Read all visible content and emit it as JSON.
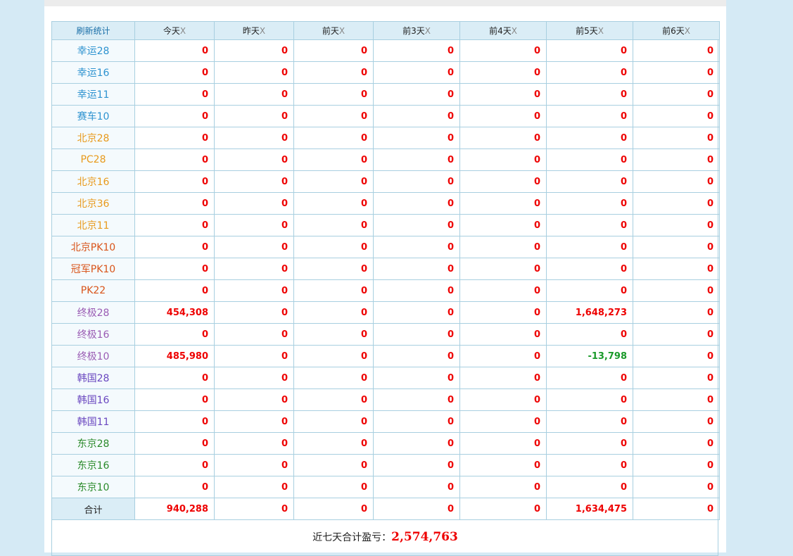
{
  "header": {
    "first": "刷新统计",
    "days": [
      "今天",
      "昨天",
      "前天",
      "前3天",
      "前4天",
      "前5天",
      "前6天"
    ],
    "close": "X"
  },
  "rows": [
    {
      "name": "幸运28",
      "color": "#2e93d0",
      "values": [
        "0",
        "0",
        "0",
        "0",
        "0",
        "0",
        "0"
      ]
    },
    {
      "name": "幸运16",
      "color": "#2e93d0",
      "values": [
        "0",
        "0",
        "0",
        "0",
        "0",
        "0",
        "0"
      ]
    },
    {
      "name": "幸运11",
      "color": "#2e93d0",
      "values": [
        "0",
        "0",
        "0",
        "0",
        "0",
        "0",
        "0"
      ]
    },
    {
      "name": "赛车10",
      "color": "#2e93d0",
      "values": [
        "0",
        "0",
        "0",
        "0",
        "0",
        "0",
        "0"
      ]
    },
    {
      "name": "北京28",
      "color": "#e89a1c",
      "values": [
        "0",
        "0",
        "0",
        "0",
        "0",
        "0",
        "0"
      ]
    },
    {
      "name": "PC28",
      "color": "#e89a1c",
      "values": [
        "0",
        "0",
        "0",
        "0",
        "0",
        "0",
        "0"
      ]
    },
    {
      "name": "北京16",
      "color": "#e89a1c",
      "values": [
        "0",
        "0",
        "0",
        "0",
        "0",
        "0",
        "0"
      ]
    },
    {
      "name": "北京36",
      "color": "#e89a1c",
      "values": [
        "0",
        "0",
        "0",
        "0",
        "0",
        "0",
        "0"
      ]
    },
    {
      "name": "北京11",
      "color": "#e89a1c",
      "values": [
        "0",
        "0",
        "0",
        "0",
        "0",
        "0",
        "0"
      ]
    },
    {
      "name": "北京PK10",
      "color": "#d9541a",
      "values": [
        "0",
        "0",
        "0",
        "0",
        "0",
        "0",
        "0"
      ]
    },
    {
      "name": "冠军PK10",
      "color": "#d9541a",
      "values": [
        "0",
        "0",
        "0",
        "0",
        "0",
        "0",
        "0"
      ]
    },
    {
      "name": "PK22",
      "color": "#d9541a",
      "values": [
        "0",
        "0",
        "0",
        "0",
        "0",
        "0",
        "0"
      ]
    },
    {
      "name": "终极28",
      "color": "#9a5cb4",
      "values": [
        "454,308",
        "0",
        "0",
        "0",
        "0",
        "1,648,273",
        "0"
      ]
    },
    {
      "name": "终极16",
      "color": "#9a5cb4",
      "values": [
        "0",
        "0",
        "0",
        "0",
        "0",
        "0",
        "0"
      ]
    },
    {
      "name": "终极10",
      "color": "#9a5cb4",
      "values": [
        "485,980",
        "0",
        "0",
        "0",
        "0",
        "-13,798",
        "0"
      ]
    },
    {
      "name": "韩国28",
      "color": "#6a48c0",
      "values": [
        "0",
        "0",
        "0",
        "0",
        "0",
        "0",
        "0"
      ]
    },
    {
      "name": "韩国16",
      "color": "#6a48c0",
      "values": [
        "0",
        "0",
        "0",
        "0",
        "0",
        "0",
        "0"
      ]
    },
    {
      "name": "韩国11",
      "color": "#6a48c0",
      "values": [
        "0",
        "0",
        "0",
        "0",
        "0",
        "0",
        "0"
      ]
    },
    {
      "name": "东京28",
      "color": "#2a8a2a",
      "values": [
        "0",
        "0",
        "0",
        "0",
        "0",
        "0",
        "0"
      ]
    },
    {
      "name": "东京16",
      "color": "#2a8a2a",
      "values": [
        "0",
        "0",
        "0",
        "0",
        "0",
        "0",
        "0"
      ]
    },
    {
      "name": "东京10",
      "color": "#2a8a2a",
      "values": [
        "0",
        "0",
        "0",
        "0",
        "0",
        "0",
        "0"
      ]
    }
  ],
  "total": {
    "name": "合计",
    "values": [
      "940,288",
      "0",
      "0",
      "0",
      "0",
      "1,634,475",
      "0"
    ]
  },
  "summary": {
    "label": "近七天合计盈亏：",
    "value": "2,574,763"
  }
}
